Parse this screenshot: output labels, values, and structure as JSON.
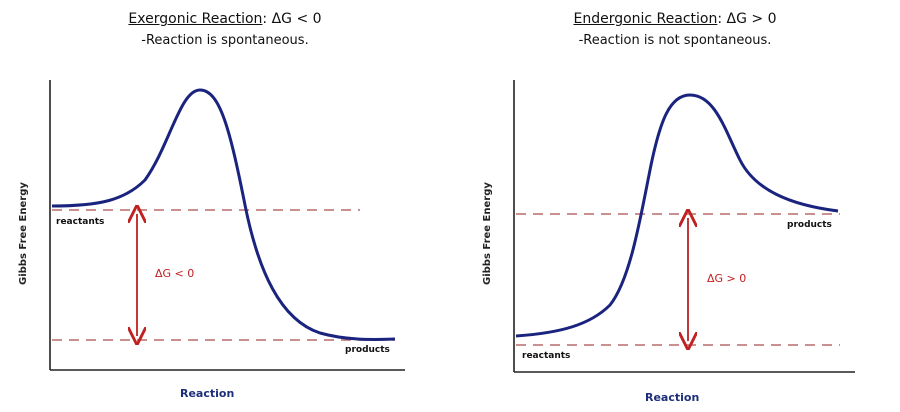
{
  "left": {
    "title_label": "Exergonic Reaction",
    "title_relation": "ΔG < 0",
    "subtitle": "-Reaction is spontaneous.",
    "y_axis_label": "Gibbs Free Energy",
    "x_axis_label": "Reaction",
    "reactants_label": "reactants",
    "products_label": "products",
    "delta_label": "ΔG < 0"
  },
  "right": {
    "title_label": "Endergonic Reaction",
    "title_relation": "ΔG > 0",
    "subtitle": "-Reaction is not spontaneous.",
    "y_axis_label": "Gibbs Free Energy",
    "x_axis_label": "Reaction",
    "reactants_label": "reactants",
    "products_label": "products",
    "delta_label": "ΔG > 0"
  },
  "colors": {
    "curve": "#1a237e",
    "dashed": "#b86a6a",
    "arrow": "#c02020",
    "axis": "#222222"
  }
}
